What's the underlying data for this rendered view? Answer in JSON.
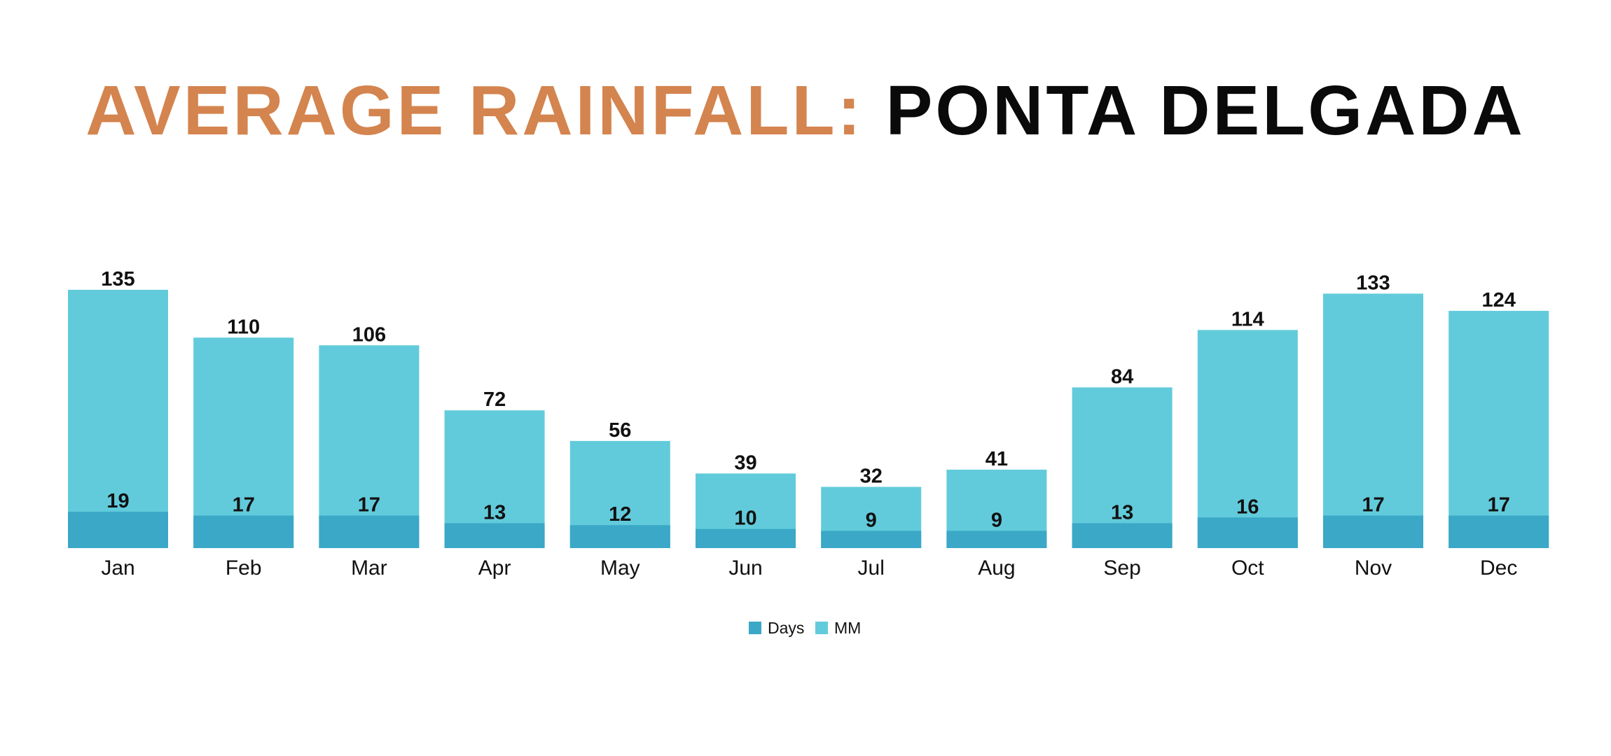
{
  "title": {
    "part1": "AVERAGE RAINFALL:",
    "part2": "PONTA DELGADA"
  },
  "colors": {
    "title_accent": "#D4844E",
    "title_main": "#0a0a0a",
    "mm": "#62CBDB",
    "days": "#3AA8C6"
  },
  "chart_data": {
    "type": "bar",
    "categories": [
      "Jan",
      "Feb",
      "Mar",
      "Apr",
      "May",
      "Jun",
      "Jul",
      "Aug",
      "Sep",
      "Oct",
      "Nov",
      "Dec"
    ],
    "series": [
      {
        "name": "Days",
        "values": [
          19,
          17,
          17,
          13,
          12,
          10,
          9,
          9,
          13,
          16,
          17,
          17
        ]
      },
      {
        "name": "MM",
        "values": [
          135,
          110,
          106,
          72,
          56,
          39,
          32,
          41,
          84,
          114,
          133,
          124
        ]
      }
    ],
    "overlapping": true,
    "legend_position": "bottom",
    "grid": false,
    "ylim": [
      0,
      135
    ]
  }
}
